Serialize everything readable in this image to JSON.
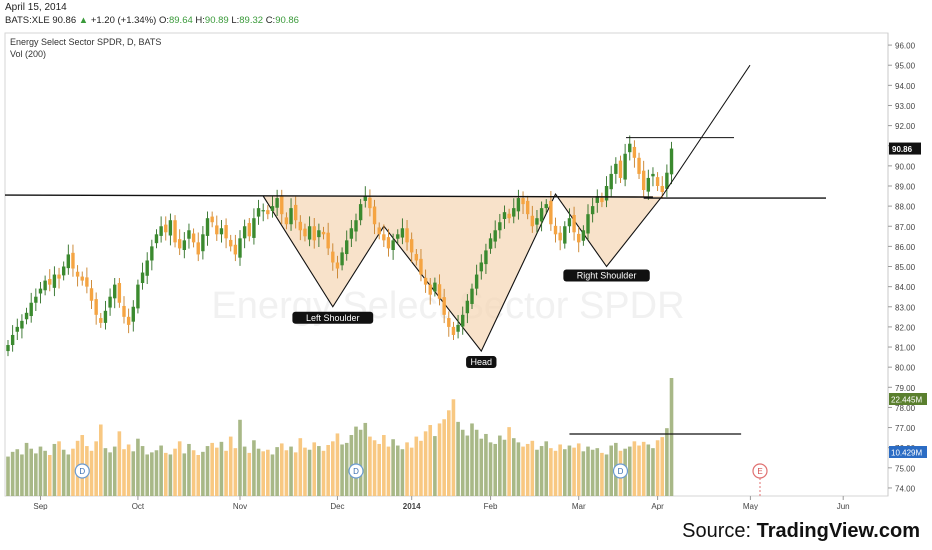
{
  "header": {
    "date": "April 15, 2014",
    "symbol": "BATS:XLE",
    "last": "90.86",
    "change": "+1.20 (+1.34%)",
    "open_label": "O:",
    "open": "89.64",
    "high_label": "H:",
    "high": "90.89",
    "low_label": "L:",
    "low": "89.32",
    "close_label": "C:",
    "close": "90.86"
  },
  "chart_data": {
    "type": "candlestick",
    "title": "Energy Select Sector SPDR, D, BATS",
    "subtitle": "Vol (200)",
    "watermark": "Energy Select Sector SPDR",
    "ylim": [
      73.6,
      96.6
    ],
    "y_ticks": [
      "74.00",
      "75.00",
      "76.00",
      "77.00",
      "78.00",
      "79.00",
      "80.00",
      "81.00",
      "82.00",
      "83.00",
      "84.00",
      "85.00",
      "86.00",
      "87.00",
      "88.00",
      "89.00",
      "90.00",
      "91.00",
      "92.00",
      "93.00",
      "94.00",
      "95.00",
      "96.00"
    ],
    "x_ticks": [
      "Sep",
      "Oct",
      "Nov",
      "Dec",
      "2014",
      "Feb",
      "Mar",
      "Apr",
      "May",
      "Jun"
    ],
    "price_badge": "90.86",
    "volume_badges": [
      "22.445M",
      "10.429M"
    ],
    "event_markers": [
      "D",
      "D",
      "D",
      "E"
    ],
    "annotations": [
      "Left Shoulder",
      "Head",
      "Right Shoulder"
    ],
    "pattern": {
      "neckline": 88.5,
      "left_shoulder_low": 83.0,
      "head_low": 80.8,
      "right_shoulder_low": 85.0,
      "target_box_level": 91.4,
      "breakout_level": 88.4,
      "projection_end": 95.0
    },
    "closes": [
      81.1,
      81.6,
      82.0,
      82.3,
      82.7,
      83.2,
      83.5,
      83.9,
      84.3,
      84.1,
      84.6,
      84.4,
      85.0,
      85.6,
      84.9,
      84.5,
      84.3,
      84.0,
      83.3,
      82.6,
      82.2,
      82.8,
      83.5,
      84.1,
      83.2,
      82.5,
      82.1,
      83.0,
      84.1,
      84.7,
      85.3,
      86.0,
      86.6,
      87.0,
      86.7,
      87.3,
      86.2,
      85.9,
      86.3,
      86.8,
      86.2,
      85.6,
      86.6,
      87.4,
      87.2,
      86.6,
      86.9,
      86.4,
      86.0,
      85.6,
      86.4,
      87.0,
      86.5,
      87.4,
      87.9,
      87.8,
      87.6,
      88.0,
      88.4,
      87.6,
      87.1,
      87.9,
      87.3,
      86.8,
      86.5,
      87.0,
      86.3,
      86.8,
      86.6,
      85.9,
      85.2,
      84.9,
      85.7,
      86.3,
      86.9,
      87.3,
      88.1,
      88.5,
      87.9,
      87.1,
      86.6,
      86.3,
      85.9,
      86.3,
      86.6,
      86.9,
      86.2,
      85.7,
      85.3,
      84.6,
      84.1,
      83.6,
      84.2,
      83.4,
      82.6,
      82.0,
      81.6,
      82.1,
      82.6,
      83.3,
      83.9,
      84.6,
      85.2,
      85.8,
      86.4,
      86.8,
      87.2,
      87.7,
      87.4,
      87.9,
      88.4,
      88.1,
      87.6,
      87.0,
      87.4,
      87.9,
      88.1,
      87.1,
      86.6,
      86.3,
      87.0,
      87.4,
      86.7,
      86.2,
      86.8,
      87.6,
      88.0,
      88.5,
      88.2,
      89.0,
      89.6,
      90.1,
      89.4,
      90.6,
      91.1,
      90.4,
      89.6,
      88.8,
      89.4,
      89.6,
      89.0,
      88.7,
      89.66,
      90.86
    ],
    "volumes": [
      7.5,
      8.4,
      8.9,
      7.9,
      10.1,
      9.0,
      8.1,
      9.4,
      8.6,
      7.8,
      9.9,
      10.4,
      8.8,
      7.9,
      9.0,
      10.5,
      11.6,
      9.5,
      8.6,
      10.4,
      13.6,
      9.1,
      8.3,
      9.4,
      12.3,
      8.9,
      9.8,
      8.5,
      10.9,
      9.5,
      7.9,
      8.3,
      8.7,
      9.6,
      8.2,
      7.9,
      9.0,
      10.4,
      8.1,
      9.9,
      8.7,
      7.8,
      8.4,
      9.5,
      10.1,
      9.2,
      10.3,
      8.6,
      11.3,
      9.1,
      14.5,
      9.4,
      8.2,
      10.6,
      9.0,
      8.5,
      8.8,
      7.9,
      9.3,
      10.0,
      8.7,
      9.4,
      8.3,
      11.0,
      9.2,
      8.8,
      10.2,
      9.5,
      8.6,
      9.7,
      10.4,
      11.9,
      9.8,
      10.1,
      11.6,
      13.2,
      12.6,
      13.9,
      11.3,
      10.6,
      9.9,
      11.6,
      9.4,
      10.8,
      9.6,
      8.9,
      10.2,
      9.2,
      11.3,
      10.5,
      12.3,
      13.5,
      11.4,
      13.8,
      14.6,
      16.3,
      18.4,
      14.1,
      12.6,
      11.5,
      13.8,
      12.6,
      10.9,
      11.8,
      10.2,
      9.9,
      11.5,
      10.7,
      13.1,
      11.0,
      10.2,
      9.4,
      9.9,
      10.5,
      8.8,
      9.5,
      10.4,
      9.1,
      8.6,
      9.8,
      8.9,
      9.6,
      9.2,
      10.0,
      8.5,
      9.4,
      8.8,
      9.1,
      8.2,
      7.9,
      9.6,
      10.1,
      8.6,
      9.0,
      9.4,
      10.4,
      9.6,
      10.3,
      9.8,
      9.1,
      10.6,
      11.2,
      12.9,
      22.445
    ]
  },
  "source": {
    "prefix": "Source: ",
    "brand": "TradingView.com"
  }
}
